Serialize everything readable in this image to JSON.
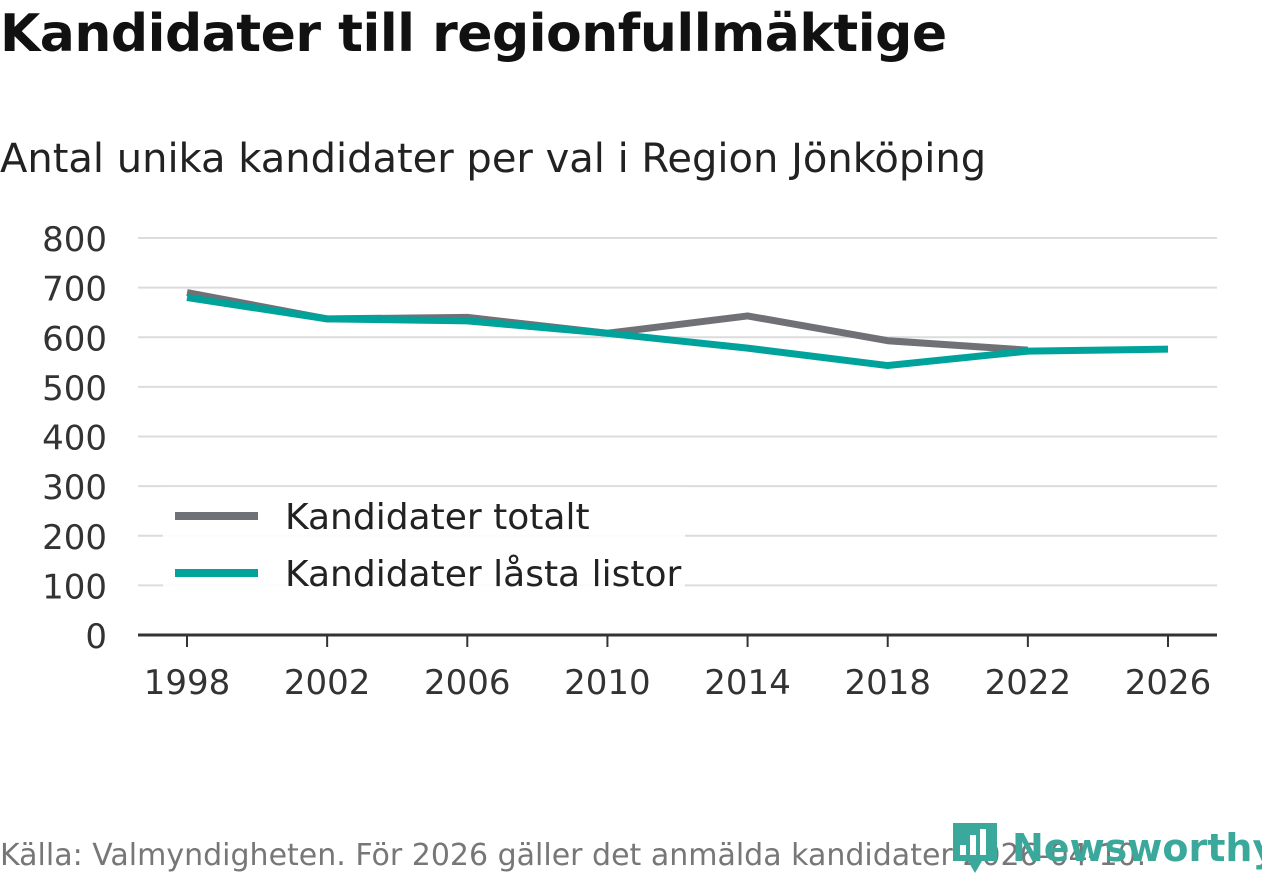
{
  "header": {
    "title": "Kandidater till regionfullmäktige",
    "subtitle": "Antal unika kandidater per val i Region Jönköping"
  },
  "footer": {
    "source": "Källa: Valmyndigheten. För 2026 gäller det anmälda kandidater 2026-04-10.",
    "brand": "Newsworthy"
  },
  "chart_data": {
    "type": "line",
    "title": "Kandidater till regionfullmäktige",
    "subtitle": "Antal unika kandidater per val i Region Jönköping",
    "xlabel": "",
    "ylabel": "",
    "x": [
      1998,
      2002,
      2006,
      2010,
      2014,
      2018,
      2022,
      2026
    ],
    "x_ticks": [
      "1998",
      "2002",
      "2006",
      "2010",
      "2014",
      "2018",
      "2022",
      "2026"
    ],
    "y_ticks": [
      "0",
      "100",
      "200",
      "300",
      "400",
      "500",
      "600",
      "700",
      "800"
    ],
    "ylim": [
      0,
      800
    ],
    "grid": true,
    "legend_position": "bottom-left",
    "series": [
      {
        "name": "Kandidater totalt",
        "color": "#707077",
        "values": [
          690,
          637,
          640,
          608,
          643,
          593,
          574,
          null
        ]
      },
      {
        "name": "Kandidater låsta listor",
        "color": "#00a39b",
        "values": [
          680,
          637,
          633,
          608,
          578,
          543,
          572,
          576
        ]
      }
    ]
  }
}
